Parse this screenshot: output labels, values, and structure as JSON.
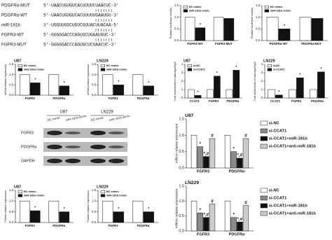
{
  "sequences": [
    {
      "name": "PDGFRα-MUT",
      "seq": "5'-UAACUGUGUCACUUUUCUAACUC-3'"
    },
    {
      "name": "PDGFRα-WT",
      "seq": "5'-UAACUGUGUCACUUUUUGAAUGU-3'"
    },
    {
      "name": "miR-181b",
      "seq": "3'-UGGGUGGCUGUCGUUACUUACAA-5'"
    },
    {
      "name": "FGFR3-WT",
      "seq": "5'-GGGGGACCCAGUGCUGAAUGUC-3'"
    },
    {
      "name": "FGFR3-MUT",
      "seq": "5'-GGGGGACCCAGUGCUCUAACUC-3'"
    }
  ],
  "blot": {
    "cell_lines": [
      "U87",
      "LN229"
    ],
    "columns": [
      "NC mimic",
      "miR-181b mimic",
      "NC mimic",
      "miR-181b mimic"
    ],
    "rows": [
      "FGFR3",
      "PDGFRα",
      "GAPDH"
    ]
  },
  "chart_data": [
    {
      "type": "bar",
      "ylabel": "Relative luciferase activity",
      "categories": [
        "FGFR3-WT",
        "FGFR3-MUT"
      ],
      "series": [
        {
          "name": "NC mimic",
          "color": "#ffffff",
          "values": [
            1.0,
            1.0
          ],
          "marks": [
            null,
            null
          ]
        },
        {
          "name": "miR-181b mimic",
          "color": "#111111",
          "values": [
            0.55,
            0.95
          ],
          "marks": [
            "*",
            null
          ]
        }
      ],
      "ylim": [
        0,
        1.5
      ],
      "yticks": [
        {
          "value": 0,
          "label": "0.0"
        },
        {
          "value": 0.5,
          "label": "0.5"
        },
        {
          "value": 1,
          "label": "1.0"
        },
        {
          "value": 1.5,
          "label": "1.5"
        }
      ],
      "legend": "upper-left"
    },
    {
      "type": "bar",
      "ylabel": "Relative luciferase activity",
      "categories": [
        "PDGFRα-WT",
        "PDGFRα-MUT"
      ],
      "series": [
        {
          "name": "NC mimic",
          "color": "#ffffff",
          "values": [
            1.0,
            1.0
          ],
          "marks": [
            null,
            null
          ]
        },
        {
          "name": "miR-181b mimic",
          "color": "#111111",
          "values": [
            0.5,
            0.95
          ],
          "marks": [
            "*",
            null
          ]
        }
      ],
      "ylim": [
        0,
        1.5
      ],
      "yticks": [
        {
          "value": 0,
          "label": "0.0"
        },
        {
          "value": 0.5,
          "label": "0.5"
        },
        {
          "value": 1,
          "label": "1.0"
        },
        {
          "value": 1.5,
          "label": "1.5"
        }
      ],
      "legend": "upper-left"
    },
    {
      "type": "bar",
      "title": "U87",
      "ylabel": "mRNA relative expression",
      "categories": [
        "FGFR3",
        "PDGFRα"
      ],
      "series": [
        {
          "name": "NC mimic",
          "color": "#ffffff",
          "values": [
            1.0,
            1.0
          ],
          "marks": [
            null,
            null
          ]
        },
        {
          "name": "miR-181b mimic",
          "color": "#111111",
          "values": [
            0.6,
            0.45
          ],
          "marks": [
            "*",
            "*"
          ]
        }
      ],
      "ylim": [
        0,
        1.5
      ],
      "yticks": [
        {
          "value": 0,
          "label": "0.0"
        },
        {
          "value": 0.5,
          "label": "0.5"
        },
        {
          "value": 1,
          "label": "1.0"
        },
        {
          "value": 1.5,
          "label": "1.5"
        }
      ],
      "legend": "upper-left"
    },
    {
      "type": "bar",
      "title": "LN229",
      "ylabel": "mRNA relative expression",
      "categories": [
        "FGFR3",
        "PDGFRα"
      ],
      "series": [
        {
          "name": "NC mimic",
          "color": "#ffffff",
          "values": [
            1.0,
            1.0
          ],
          "marks": [
            null,
            null
          ]
        },
        {
          "name": "miR-181b mimic",
          "color": "#111111",
          "values": [
            0.5,
            0.45
          ],
          "marks": [
            "*",
            "*"
          ]
        }
      ],
      "ylim": [
        0,
        1.5
      ],
      "yticks": [
        {
          "value": 0,
          "label": "0.0"
        },
        {
          "value": 0.5,
          "label": "0.5"
        },
        {
          "value": 1,
          "label": "1.0"
        },
        {
          "value": 1.5,
          "label": "1.5"
        }
      ],
      "legend": "upper-left"
    },
    {
      "type": "bar",
      "title": "U87",
      "ylabel": "Fold enrichment of anti-Ago2/IgG",
      "categories": [
        "CCAT1",
        "FGFR3",
        "PDGFRα"
      ],
      "series": [
        {
          "name": "si-NC",
          "color": "#ffffff",
          "values": [
            1.0,
            1.0,
            1.0
          ],
          "marks": [
            null,
            null,
            null
          ]
        },
        {
          "name": "si-CCAT1",
          "color": "#111111",
          "values": [
            0.3,
            2.6,
            3.3
          ],
          "marks": [
            "*",
            "*",
            "*"
          ]
        }
      ],
      "ylim": [
        0,
        4
      ],
      "yticks": [
        0,
        1,
        2,
        3,
        4
      ],
      "legend": "upper-left"
    },
    {
      "type": "bar",
      "title": "LN229",
      "ylabel": "Fold enrichment of anti-Ago2/IgG",
      "categories": [
        "CCAT1",
        "FGFR3",
        "PDGFRα"
      ],
      "series": [
        {
          "name": "si-NC",
          "color": "#ffffff",
          "values": [
            1.0,
            1.0,
            1.0
          ],
          "marks": [
            null,
            null,
            null
          ]
        },
        {
          "name": "si-CCAT1",
          "color": "#111111",
          "values": [
            0.35,
            2.4,
            3.1
          ],
          "marks": [
            "*",
            "*",
            "*"
          ]
        }
      ],
      "ylim": [
        0,
        4
      ],
      "yticks": [
        0,
        1,
        2,
        3,
        4
      ],
      "legend": "upper-left"
    },
    {
      "type": "bar",
      "title": "U87",
      "ylabel": "mRNA relative expression",
      "categories": [
        "FGFR3",
        "PDGFRα"
      ],
      "series": [
        {
          "name": "si-NC",
          "color": "#ffffff",
          "values": [
            1.0,
            1.0
          ],
          "marks": [
            null,
            null
          ]
        },
        {
          "name": "si-CCAT1",
          "color": "#8a8a8a",
          "values": [
            0.65,
            0.5
          ],
          "marks": [
            "*",
            "*"
          ]
        },
        {
          "name": "si-CCAT1+miR-181b",
          "color": "#111111",
          "values": [
            0.35,
            0.3
          ],
          "marks": [
            "*,#",
            "*,#"
          ]
        },
        {
          "name": "si-CCAT1+anti-miR-181b",
          "color": "#cccccc",
          "values": [
            0.9,
            0.9
          ],
          "marks": [
            "#",
            "#"
          ]
        }
      ],
      "ylim": [
        0,
        1.5
      ],
      "yticks": [
        {
          "value": 0,
          "label": "0.0"
        },
        {
          "value": 0.5,
          "label": "0.5"
        },
        {
          "value": 1,
          "label": "1.0"
        },
        {
          "value": 1.5,
          "label": "1.5"
        }
      ],
      "legend": "right"
    },
    {
      "type": "bar",
      "title": "U87",
      "ylabel": "Protein relative expression",
      "categories": [
        "FGFR3",
        "PDGFRα"
      ],
      "series": [
        {
          "name": "NC mimic",
          "color": "#ffffff",
          "values": [
            1.0,
            1.0
          ],
          "marks": [
            null,
            null
          ]
        },
        {
          "name": "miR-181b mimic",
          "color": "#111111",
          "values": [
            0.55,
            0.5
          ],
          "marks": [
            "*",
            "*"
          ]
        }
      ],
      "ylim": [
        0,
        1.5
      ],
      "yticks": [
        {
          "value": 0,
          "label": "0.0"
        },
        {
          "value": 0.5,
          "label": "0.5"
        },
        {
          "value": 1,
          "label": "1.0"
        },
        {
          "value": 1.5,
          "label": "1.5"
        }
      ],
      "legend": "upper-left"
    },
    {
      "type": "bar",
      "title": "LN229",
      "ylabel": "Protein relative expression",
      "categories": [
        "FGFR3",
        "PDGFRα"
      ],
      "series": [
        {
          "name": "NC mimic",
          "color": "#ffffff",
          "values": [
            1.0,
            1.0
          ],
          "marks": [
            null,
            null
          ]
        },
        {
          "name": "miR-181b mimic",
          "color": "#111111",
          "values": [
            0.5,
            0.5
          ],
          "marks": [
            "*",
            "*"
          ]
        }
      ],
      "ylim": [
        0,
        1.5
      ],
      "yticks": [
        {
          "value": 0,
          "label": "0.0"
        },
        {
          "value": 0.5,
          "label": "0.5"
        },
        {
          "value": 1,
          "label": "1.0"
        },
        {
          "value": 1.5,
          "label": "1.5"
        }
      ],
      "legend": "upper-left"
    },
    {
      "type": "bar",
      "title": "LN229",
      "ylabel": "mRNA relative expression",
      "categories": [
        "FGFR3",
        "PDGFRα"
      ],
      "series": [
        {
          "name": "si-NC",
          "color": "#ffffff",
          "values": [
            1.0,
            1.0
          ],
          "marks": [
            null,
            null
          ]
        },
        {
          "name": "si-CCAT1",
          "color": "#8a8a8a",
          "values": [
            0.6,
            0.45
          ],
          "marks": [
            "*",
            "*"
          ]
        },
        {
          "name": "si-CCAT1+miR-181b",
          "color": "#111111",
          "values": [
            0.45,
            0.3
          ],
          "marks": [
            "*,#",
            "*,#"
          ]
        },
        {
          "name": "si-CCAT1+anti-miR-181b",
          "color": "#cccccc",
          "values": [
            0.9,
            0.85
          ],
          "marks": [
            "#",
            "#"
          ]
        }
      ],
      "ylim": [
        0,
        1.5
      ],
      "yticks": [
        {
          "value": 0,
          "label": "0.0"
        },
        {
          "value": 0.5,
          "label": "0.5"
        },
        {
          "value": 1,
          "label": "1.0"
        },
        {
          "value": 1.5,
          "label": "1.5"
        }
      ],
      "legend": "right"
    }
  ]
}
